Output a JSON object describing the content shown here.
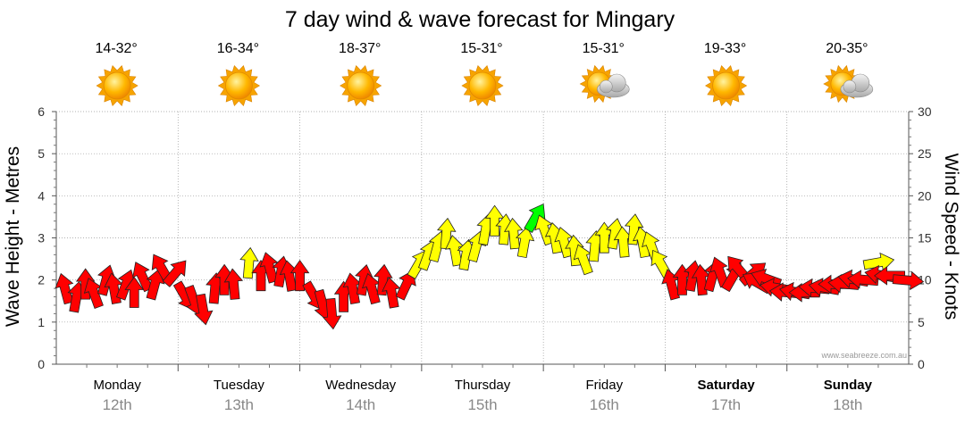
{
  "title": "7 day wind & wave forecast for Mingary",
  "credit": "www.seabreeze.com.au",
  "days": [
    {
      "name": "Monday",
      "date": "12th",
      "temp": "14-32°",
      "weather": "sunny-icon",
      "bold": false
    },
    {
      "name": "Tuesday",
      "date": "13th",
      "temp": "16-34°",
      "weather": "sunny-icon",
      "bold": false
    },
    {
      "name": "Wednesday",
      "date": "14th",
      "temp": "18-37°",
      "weather": "sunny-icon",
      "bold": false
    },
    {
      "name": "Thursday",
      "date": "15th",
      "temp": "15-31°",
      "weather": "sunny-icon",
      "bold": false
    },
    {
      "name": "Friday",
      "date": "16th",
      "temp": "15-31°",
      "weather": "partly-cloudy-icon",
      "bold": false
    },
    {
      "name": "Saturday",
      "date": "17th",
      "temp": "19-33°",
      "weather": "sunny-icon",
      "bold": true
    },
    {
      "name": "Sunday",
      "date": "18th",
      "temp": "20-35°",
      "weather": "partly-cloudy-icon",
      "bold": true
    }
  ],
  "colors": {
    "strong": "#ff0000",
    "moderate": "#ffff00",
    "peak": "#00ff00",
    "grid": "#999999",
    "date_text": "#888888"
  },
  "chart_data": {
    "type": "scatter",
    "marker": "wind-direction-arrow",
    "title": "7 day wind & wave forecast for Mingary",
    "ylabel_left": "Wave Height - Metres",
    "ylabel_right": "Wind Speed - Knots",
    "ylim_left": [
      0,
      6
    ],
    "ylim_right": [
      0,
      30
    ],
    "yticks_left": [
      "0",
      "1",
      "2",
      "3",
      "4",
      "5",
      "6"
    ],
    "yticks_right": [
      "0",
      "5",
      "10",
      "15",
      "20",
      "25",
      "30"
    ],
    "x_unit": "day index (0 = Monday 12th 00:00)",
    "xlim": [
      0,
      7
    ],
    "grid": true,
    "series": [
      {
        "measure": "wind speed (knots)",
        "points": [
          {
            "x": 0.08,
            "y": 8.5,
            "dir": -15,
            "color": "strong"
          },
          {
            "x": 0.16,
            "y": 7.5,
            "dir": 10,
            "color": "strong"
          },
          {
            "x": 0.24,
            "y": 9.0,
            "dir": 0,
            "color": "strong"
          },
          {
            "x": 0.32,
            "y": 8.0,
            "dir": -20,
            "color": "strong"
          },
          {
            "x": 0.4,
            "y": 9.5,
            "dir": 15,
            "color": "strong"
          },
          {
            "x": 0.48,
            "y": 8.5,
            "dir": -10,
            "color": "strong"
          },
          {
            "x": 0.56,
            "y": 9.0,
            "dir": 20,
            "color": "strong"
          },
          {
            "x": 0.64,
            "y": 8.0,
            "dir": 0,
            "color": "strong"
          },
          {
            "x": 0.72,
            "y": 10.0,
            "dir": -25,
            "color": "strong"
          },
          {
            "x": 0.8,
            "y": 9.0,
            "dir": 15,
            "color": "strong"
          },
          {
            "x": 0.88,
            "y": 11.0,
            "dir": -30,
            "color": "strong"
          },
          {
            "x": 0.96,
            "y": 10.5,
            "dir": 40,
            "color": "strong"
          },
          {
            "x": 1.04,
            "y": 8.5,
            "dir": 150,
            "color": "strong"
          },
          {
            "x": 1.12,
            "y": 8.0,
            "dir": 160,
            "color": "strong"
          },
          {
            "x": 1.2,
            "y": 7.0,
            "dir": 170,
            "color": "strong"
          },
          {
            "x": 1.3,
            "y": 8.5,
            "dir": 5,
            "color": "strong"
          },
          {
            "x": 1.38,
            "y": 9.5,
            "dir": 0,
            "color": "strong"
          },
          {
            "x": 1.46,
            "y": 9.0,
            "dir": -5,
            "color": "strong"
          },
          {
            "x": 1.58,
            "y": 11.5,
            "dir": 5,
            "color": "moderate"
          },
          {
            "x": 1.68,
            "y": 10.0,
            "dir": 0,
            "color": "strong"
          },
          {
            "x": 1.76,
            "y": 11.0,
            "dir": -15,
            "color": "strong"
          },
          {
            "x": 1.84,
            "y": 10.5,
            "dir": 10,
            "color": "strong"
          },
          {
            "x": 1.92,
            "y": 10.0,
            "dir": -10,
            "color": "strong"
          },
          {
            "x": 2.0,
            "y": 10.0,
            "dir": 0,
            "color": "strong"
          },
          {
            "x": 2.1,
            "y": 8.5,
            "dir": 150,
            "color": "strong"
          },
          {
            "x": 2.18,
            "y": 7.5,
            "dir": 165,
            "color": "strong"
          },
          {
            "x": 2.26,
            "y": 6.5,
            "dir": 175,
            "color": "strong"
          },
          {
            "x": 2.36,
            "y": 7.5,
            "dir": 0,
            "color": "strong"
          },
          {
            "x": 2.44,
            "y": 8.5,
            "dir": -10,
            "color": "strong"
          },
          {
            "x": 2.52,
            "y": 9.5,
            "dir": 10,
            "color": "strong"
          },
          {
            "x": 2.6,
            "y": 8.5,
            "dir": -15,
            "color": "strong"
          },
          {
            "x": 2.68,
            "y": 9.5,
            "dir": 5,
            "color": "strong"
          },
          {
            "x": 2.76,
            "y": 8.0,
            "dir": -10,
            "color": "strong"
          },
          {
            "x": 2.86,
            "y": 9.0,
            "dir": 25,
            "color": "strong"
          },
          {
            "x": 2.96,
            "y": 11.5,
            "dir": 30,
            "color": "moderate"
          },
          {
            "x": 3.04,
            "y": 12.5,
            "dir": 20,
            "color": "moderate"
          },
          {
            "x": 3.12,
            "y": 13.5,
            "dir": 15,
            "color": "moderate"
          },
          {
            "x": 3.2,
            "y": 15.0,
            "dir": 5,
            "color": "moderate"
          },
          {
            "x": 3.28,
            "y": 13.0,
            "dir": -10,
            "color": "moderate"
          },
          {
            "x": 3.36,
            "y": 12.5,
            "dir": 10,
            "color": "moderate"
          },
          {
            "x": 3.44,
            "y": 13.5,
            "dir": 15,
            "color": "moderate"
          },
          {
            "x": 3.52,
            "y": 15.5,
            "dir": 10,
            "color": "moderate"
          },
          {
            "x": 3.6,
            "y": 16.5,
            "dir": 0,
            "color": "moderate"
          },
          {
            "x": 3.68,
            "y": 15.5,
            "dir": 5,
            "color": "moderate"
          },
          {
            "x": 3.76,
            "y": 15.0,
            "dir": -5,
            "color": "moderate"
          },
          {
            "x": 3.84,
            "y": 14.0,
            "dir": 10,
            "color": "moderate"
          },
          {
            "x": 3.92,
            "y": 17.0,
            "dir": 30,
            "color": "peak"
          },
          {
            "x": 4.02,
            "y": 15.5,
            "dir": -20,
            "color": "moderate"
          },
          {
            "x": 4.1,
            "y": 14.5,
            "dir": -10,
            "color": "moderate"
          },
          {
            "x": 4.18,
            "y": 14.0,
            "dir": -15,
            "color": "moderate"
          },
          {
            "x": 4.26,
            "y": 13.0,
            "dir": -5,
            "color": "moderate"
          },
          {
            "x": 4.34,
            "y": 12.0,
            "dir": -20,
            "color": "moderate"
          },
          {
            "x": 4.42,
            "y": 13.5,
            "dir": 5,
            "color": "moderate"
          },
          {
            "x": 4.5,
            "y": 14.5,
            "dir": 0,
            "color": "moderate"
          },
          {
            "x": 4.58,
            "y": 15.0,
            "dir": 10,
            "color": "moderate"
          },
          {
            "x": 4.66,
            "y": 14.0,
            "dir": -5,
            "color": "moderate"
          },
          {
            "x": 4.74,
            "y": 15.5,
            "dir": 5,
            "color": "moderate"
          },
          {
            "x": 4.82,
            "y": 14.0,
            "dir": -10,
            "color": "moderate"
          },
          {
            "x": 4.9,
            "y": 13.5,
            "dir": -20,
            "color": "moderate"
          },
          {
            "x": 4.98,
            "y": 11.5,
            "dir": -30,
            "color": "moderate"
          },
          {
            "x": 5.06,
            "y": 9.0,
            "dir": -15,
            "color": "strong"
          },
          {
            "x": 5.14,
            "y": 9.5,
            "dir": 0,
            "color": "strong"
          },
          {
            "x": 5.22,
            "y": 10.0,
            "dir": 10,
            "color": "strong"
          },
          {
            "x": 5.3,
            "y": 9.5,
            "dir": -5,
            "color": "strong"
          },
          {
            "x": 5.38,
            "y": 10.0,
            "dir": 15,
            "color": "strong"
          },
          {
            "x": 5.46,
            "y": 10.5,
            "dir": -20,
            "color": "strong"
          },
          {
            "x": 5.54,
            "y": 10.0,
            "dir": 30,
            "color": "strong"
          },
          {
            "x": 5.62,
            "y": 11.0,
            "dir": -40,
            "color": "strong"
          },
          {
            "x": 5.7,
            "y": 10.5,
            "dir": 50,
            "color": "strong"
          },
          {
            "x": 5.78,
            "y": 9.5,
            "dir": -60,
            "color": "strong"
          },
          {
            "x": 5.86,
            "y": 10.0,
            "dir": -70,
            "color": "strong"
          },
          {
            "x": 5.94,
            "y": 9.0,
            "dir": -80,
            "color": "strong"
          },
          {
            "x": 6.02,
            "y": 8.5,
            "dir": -85,
            "color": "strong"
          },
          {
            "x": 6.1,
            "y": 8.5,
            "dir": -80,
            "color": "strong"
          },
          {
            "x": 6.18,
            "y": 8.5,
            "dir": -90,
            "color": "strong"
          },
          {
            "x": 6.26,
            "y": 9.0,
            "dir": -85,
            "color": "strong"
          },
          {
            "x": 6.34,
            "y": 9.0,
            "dir": -80,
            "color": "strong"
          },
          {
            "x": 6.42,
            "y": 9.5,
            "dir": -90,
            "color": "strong"
          },
          {
            "x": 6.5,
            "y": 9.5,
            "dir": -85,
            "color": "strong"
          },
          {
            "x": 6.58,
            "y": 10.0,
            "dir": -80,
            "color": "strong"
          },
          {
            "x": 6.66,
            "y": 10.0,
            "dir": -85,
            "color": "strong"
          },
          {
            "x": 6.72,
            "y": 12.0,
            "dir": 80,
            "color": "moderate"
          },
          {
            "x": 6.8,
            "y": 10.5,
            "dir": -80,
            "color": "strong"
          },
          {
            "x": 6.88,
            "y": 10.5,
            "dir": -90,
            "color": "strong"
          },
          {
            "x": 6.96,
            "y": 10.0,
            "dir": 95,
            "color": "strong"
          }
        ]
      }
    ]
  }
}
